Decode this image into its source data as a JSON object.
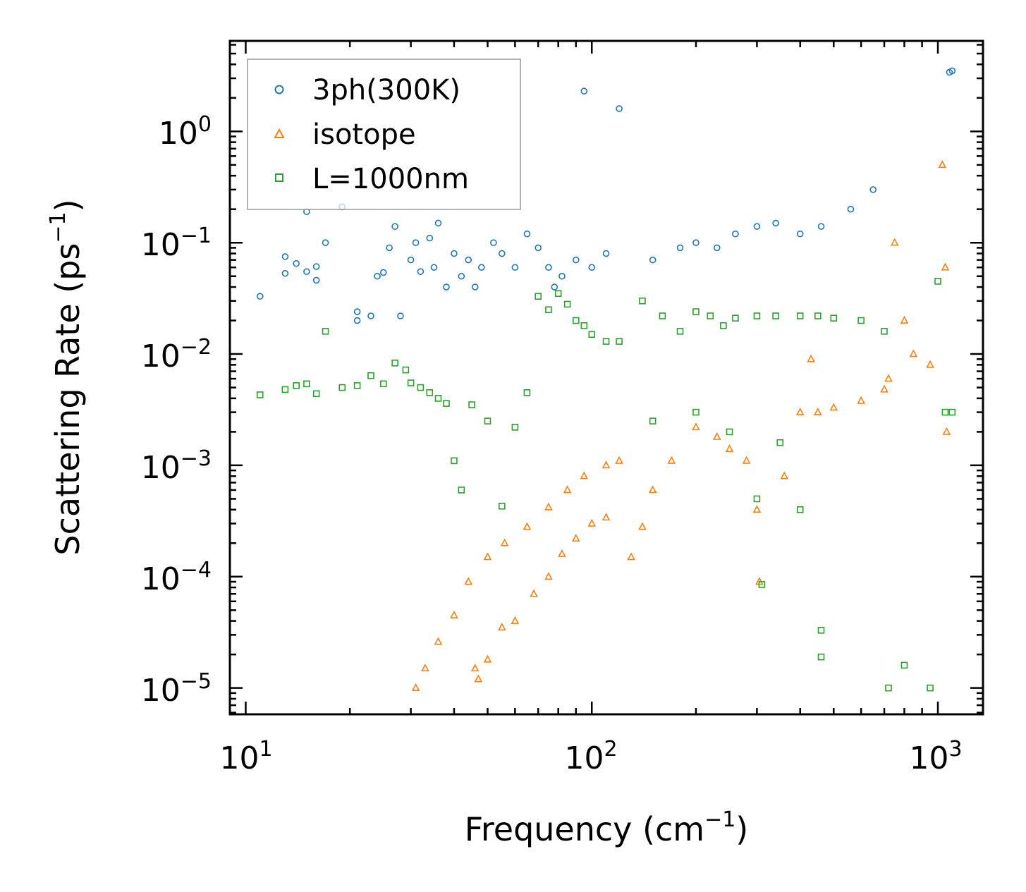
{
  "chart_data": {
    "type": "scatter",
    "xscale": "log",
    "yscale": "log",
    "xlabel": "Frequency (cm",
    "xlabel_unit_exp": "−1",
    "xlabel_close": ")",
    "ylabel": "Scattering Rate (ps",
    "ylabel_unit_exp": "−1",
    "ylabel_close": ")",
    "xlim": [
      9,
      1350
    ],
    "ylim": [
      5.8e-06,
      6.5
    ],
    "x_ticks": [
      {
        "base": "10",
        "exp": "1",
        "value": 10
      },
      {
        "base": "10",
        "exp": "2",
        "value": 100
      },
      {
        "base": "10",
        "exp": "3",
        "value": 1000
      }
    ],
    "y_ticks": [
      {
        "base": "10",
        "exp": "0",
        "value": 1
      },
      {
        "base": "10",
        "exp": "−1",
        "value": 0.1
      },
      {
        "base": "10",
        "exp": "−2",
        "value": 0.01
      },
      {
        "base": "10",
        "exp": "−3",
        "value": 0.001
      },
      {
        "base": "10",
        "exp": "−4",
        "value": 0.0001
      },
      {
        "base": "10",
        "exp": "−5",
        "value": 1e-05
      }
    ],
    "legend_position": "top-left",
    "series": [
      {
        "name": "3ph(300K)",
        "marker": "circle",
        "color": "#1f77b4",
        "points": [
          [
            11,
            0.033
          ],
          [
            13,
            0.075
          ],
          [
            13,
            0.053
          ],
          [
            14,
            0.065
          ],
          [
            15,
            0.19
          ],
          [
            15,
            0.055
          ],
          [
            16,
            0.061
          ],
          [
            16,
            0.046
          ],
          [
            17,
            0.1
          ],
          [
            19,
            0.21
          ],
          [
            21,
            0.024
          ],
          [
            21,
            0.02
          ],
          [
            23,
            0.022
          ],
          [
            24,
            0.05
          ],
          [
            25,
            0.054
          ],
          [
            26,
            0.09
          ],
          [
            27,
            0.14
          ],
          [
            28,
            0.022
          ],
          [
            30,
            0.07
          ],
          [
            31,
            0.1
          ],
          [
            32,
            0.055
          ],
          [
            34,
            0.11
          ],
          [
            35,
            0.06
          ],
          [
            36,
            0.15
          ],
          [
            38,
            0.04
          ],
          [
            40,
            0.08
          ],
          [
            42,
            0.05
          ],
          [
            44,
            0.07
          ],
          [
            46,
            0.04
          ],
          [
            48,
            0.06
          ],
          [
            52,
            0.1
          ],
          [
            55,
            0.08
          ],
          [
            60,
            0.06
          ],
          [
            65,
            0.12
          ],
          [
            70,
            0.09
          ],
          [
            75,
            0.06
          ],
          [
            78,
            0.04
          ],
          [
            82,
            0.05
          ],
          [
            90,
            0.07
          ],
          [
            95,
            2.3
          ],
          [
            100,
            0.06
          ],
          [
            110,
            0.08
          ],
          [
            120,
            1.6
          ],
          [
            150,
            0.07
          ],
          [
            180,
            0.09
          ],
          [
            200,
            0.1
          ],
          [
            230,
            0.09
          ],
          [
            260,
            0.12
          ],
          [
            300,
            0.14
          ],
          [
            340,
            0.15
          ],
          [
            400,
            0.12
          ],
          [
            460,
            0.14
          ],
          [
            560,
            0.2
          ],
          [
            650,
            0.3
          ],
          [
            1080,
            3.4
          ],
          [
            1100,
            3.5
          ]
        ]
      },
      {
        "name": "isotope",
        "marker": "triangle",
        "color": "#ff7f0e",
        "points": [
          [
            31,
            1e-05
          ],
          [
            33,
            1.5e-05
          ],
          [
            36,
            2.6e-05
          ],
          [
            40,
            4.5e-05
          ],
          [
            44,
            9e-05
          ],
          [
            50,
            0.00015
          ],
          [
            56,
            0.0002
          ],
          [
            65,
            0.00028
          ],
          [
            75,
            0.00042
          ],
          [
            85,
            0.0006
          ],
          [
            95,
            0.0008
          ],
          [
            110,
            0.001
          ],
          [
            120,
            0.0011
          ],
          [
            47,
            1.2e-05
          ],
          [
            46,
            1.5e-05
          ],
          [
            50,
            1.8e-05
          ],
          [
            55,
            3.5e-05
          ],
          [
            60,
            4e-05
          ],
          [
            68,
            7e-05
          ],
          [
            75,
            0.0001
          ],
          [
            82,
            0.00016
          ],
          [
            90,
            0.00022
          ],
          [
            100,
            0.0003
          ],
          [
            110,
            0.00034
          ],
          [
            130,
            0.00015
          ],
          [
            140,
            0.00028
          ],
          [
            150,
            0.0006
          ],
          [
            170,
            0.0011
          ],
          [
            200,
            0.0022
          ],
          [
            230,
            0.0018
          ],
          [
            250,
            0.0014
          ],
          [
            280,
            0.0011
          ],
          [
            300,
            0.0004
          ],
          [
            305,
            9e-05
          ],
          [
            360,
            0.0008
          ],
          [
            400,
            0.003
          ],
          [
            430,
            0.009
          ],
          [
            450,
            0.003
          ],
          [
            500,
            0.0033
          ],
          [
            600,
            0.0038
          ],
          [
            700,
            0.0048
          ],
          [
            720,
            0.006
          ],
          [
            750,
            0.1
          ],
          [
            800,
            0.02
          ],
          [
            850,
            0.01
          ],
          [
            950,
            0.008
          ],
          [
            1030,
            0.5
          ],
          [
            1050,
            0.06
          ],
          [
            1060,
            0.002
          ]
        ]
      },
      {
        "name": "L=1000nm",
        "marker": "square",
        "color": "#2ca02c",
        "points": [
          [
            11,
            0.0043
          ],
          [
            13,
            0.0048
          ],
          [
            14,
            0.0052
          ],
          [
            15,
            0.0054
          ],
          [
            16,
            0.0044
          ],
          [
            17,
            0.016
          ],
          [
            19,
            0.005
          ],
          [
            21,
            0.0052
          ],
          [
            23,
            0.0064
          ],
          [
            25,
            0.0054
          ],
          [
            27,
            0.0083
          ],
          [
            29,
            0.0072
          ],
          [
            30,
            0.0055
          ],
          [
            32,
            0.005
          ],
          [
            34,
            0.0045
          ],
          [
            36,
            0.004
          ],
          [
            38,
            0.0036
          ],
          [
            40,
            0.0011
          ],
          [
            42,
            0.0006
          ],
          [
            45,
            0.0035
          ],
          [
            50,
            0.0025
          ],
          [
            55,
            0.00043
          ],
          [
            60,
            0.0022
          ],
          [
            65,
            0.0045
          ],
          [
            70,
            0.033
          ],
          [
            75,
            0.025
          ],
          [
            80,
            0.035
          ],
          [
            85,
            0.028
          ],
          [
            90,
            0.02
          ],
          [
            95,
            0.018
          ],
          [
            100,
            0.015
          ],
          [
            110,
            0.013
          ],
          [
            120,
            0.013
          ],
          [
            140,
            0.03
          ],
          [
            160,
            0.022
          ],
          [
            180,
            0.016
          ],
          [
            200,
            0.024
          ],
          [
            220,
            0.022
          ],
          [
            240,
            0.018
          ],
          [
            260,
            0.021
          ],
          [
            300,
            0.022
          ],
          [
            340,
            0.022
          ],
          [
            400,
            0.022
          ],
          [
            450,
            0.022
          ],
          [
            500,
            0.021
          ],
          [
            600,
            0.02
          ],
          [
            700,
            0.016
          ],
          [
            720,
            1e-05
          ],
          [
            800,
            1.6e-05
          ],
          [
            950,
            1e-05
          ],
          [
            1000,
            0.045
          ],
          [
            1050,
            0.003
          ],
          [
            1100,
            0.003
          ],
          [
            150,
            0.0025
          ],
          [
            200,
            0.003
          ],
          [
            250,
            0.002
          ],
          [
            300,
            0.0005
          ],
          [
            350,
            0.0016
          ],
          [
            400,
            0.0004
          ],
          [
            460,
            1.9e-05
          ],
          [
            460,
            3.3e-05
          ],
          [
            310,
            8.5e-05
          ]
        ]
      }
    ]
  }
}
